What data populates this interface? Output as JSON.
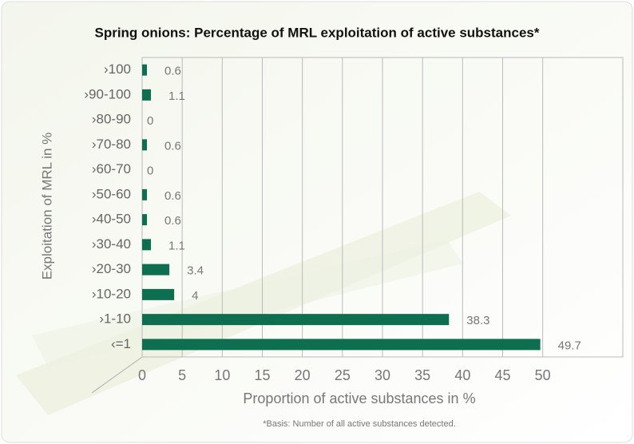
{
  "chart_data": {
    "type": "hbar",
    "title": "Spring onions: Percentage of MRL exploitation of active substances*",
    "x_label": "Proportion of active substances in %",
    "y_label": "Exploitation of MRL in %",
    "footnote": "*Basis: Number of all active substances detected.",
    "categories": [
      "›100",
      "›90-100",
      "›80-90",
      "›70-80",
      "›60-70",
      "›50-60",
      "›40-50",
      "›30-40",
      "›20-30",
      "›10-20",
      "›1-10",
      "‹=1"
    ],
    "values": [
      0.6,
      1.1,
      0,
      0.6,
      0,
      0.6,
      0.6,
      1.1,
      3.4,
      4,
      38.3,
      49.7
    ],
    "color": "#0e6e50",
    "xlim": [
      0,
      60
    ],
    "xticks": [
      0,
      5,
      10,
      15,
      20,
      25,
      30,
      35,
      40,
      45,
      50
    ],
    "grid": true
  }
}
